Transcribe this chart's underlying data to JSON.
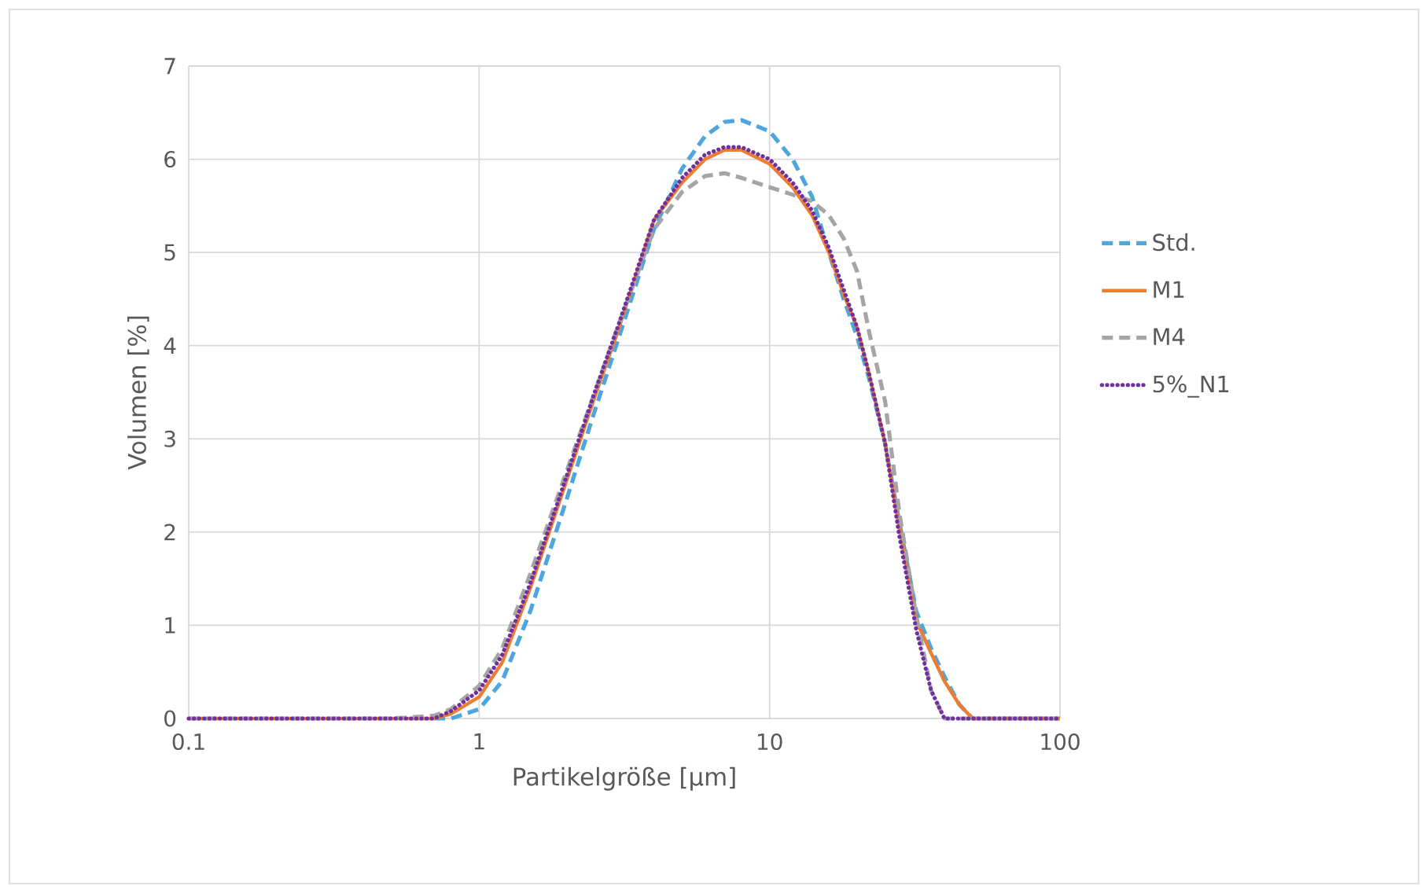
{
  "chart_data": {
    "type": "line",
    "xlabel": "Partikelgröße [µm]",
    "ylabel": "Volumen [%]",
    "log": "x",
    "grid": true,
    "legend": "right",
    "xlim": [
      0.1,
      100
    ],
    "xticks": [
      0.1,
      1,
      10,
      100
    ],
    "ylim": [
      0,
      7
    ],
    "yticks": [
      0,
      1,
      2,
      3,
      4,
      5,
      6,
      7
    ],
    "x": [
      0.1,
      0.2,
      0.3,
      0.5,
      0.7,
      0.8,
      1,
      1.2,
      1.5,
      2,
      2.5,
      3,
      4,
      5,
      6,
      7,
      8,
      10,
      12,
      14,
      16,
      18,
      20,
      22,
      25,
      28,
      32,
      36,
      40,
      45,
      50,
      60,
      100
    ],
    "series": [
      {
        "name": "Std.",
        "color": "#4ea6dc",
        "line_style": "dashed",
        "values": [
          null,
          null,
          null,
          null,
          0,
          0,
          0.1,
          0.4,
          1.15,
          2.35,
          3.3,
          4.05,
          5.25,
          5.9,
          6.25,
          6.4,
          6.42,
          6.3,
          6.0,
          5.6,
          5.0,
          4.5,
          4.1,
          3.65,
          2.95,
          2.1,
          1.15,
          0.75,
          0.45,
          0.15,
          0,
          0,
          0
        ]
      },
      {
        "name": "M1",
        "color": "#ed7d31",
        "line_style": "solid",
        "values": [
          0,
          0,
          0,
          0,
          0,
          0.05,
          0.23,
          0.6,
          1.4,
          2.55,
          3.45,
          4.15,
          5.35,
          5.75,
          6.0,
          6.1,
          6.1,
          5.95,
          5.7,
          5.4,
          5.0,
          4.55,
          4.2,
          3.7,
          2.95,
          2.05,
          1.05,
          0.7,
          0.4,
          0.15,
          0,
          0,
          0
        ]
      },
      {
        "name": "M4",
        "color": "#a5a5a5",
        "line_style": "dashed",
        "values": [
          0,
          0,
          0,
          0,
          0.03,
          0.1,
          0.35,
          0.75,
          1.55,
          2.65,
          3.5,
          4.2,
          5.25,
          5.65,
          5.82,
          5.85,
          5.8,
          5.7,
          5.62,
          5.55,
          5.4,
          5.15,
          4.8,
          4.15,
          3.4,
          2.2,
          1.1,
          0.3,
          0,
          0,
          0,
          0,
          0
        ]
      },
      {
        "name": "5%_N1",
        "color": "#7030a0",
        "line_style": "dotted",
        "values": [
          0,
          0,
          0,
          0,
          0,
          0.08,
          0.3,
          0.68,
          1.45,
          2.6,
          3.5,
          4.2,
          5.35,
          5.8,
          6.05,
          6.13,
          6.13,
          6.0,
          5.75,
          5.45,
          5.05,
          4.6,
          4.2,
          3.7,
          2.95,
          1.95,
          0.95,
          0.3,
          0,
          0,
          0,
          0,
          0
        ]
      }
    ]
  }
}
